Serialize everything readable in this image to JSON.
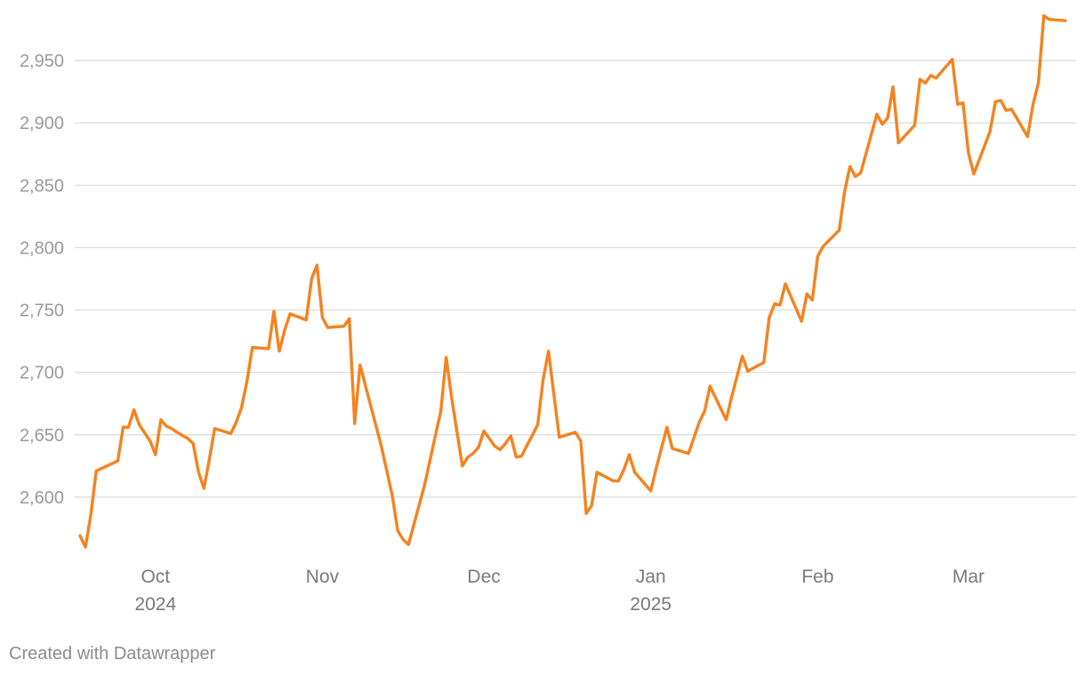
{
  "credit": "Created with Datawrapper",
  "colors": {
    "line": "#f5821f",
    "grid": "#d9d9d9",
    "y_tick_text": "#9a9a9a",
    "x_tick_text": "#7a7a7a",
    "credit_text": "#8c8c8c"
  },
  "chart_data": {
    "type": "line",
    "title": "",
    "xlabel": "",
    "ylabel": "",
    "grid": true,
    "ylim": [
      2555,
      2990
    ],
    "xlim": [
      "2024-09-16",
      "2025-03-21"
    ],
    "y_ticks": [
      {
        "value": 2600,
        "label": "2,600"
      },
      {
        "value": 2650,
        "label": "2,650"
      },
      {
        "value": 2700,
        "label": "2,700"
      },
      {
        "value": 2750,
        "label": "2,750"
      },
      {
        "value": 2800,
        "label": "2,800"
      },
      {
        "value": 2850,
        "label": "2,850"
      },
      {
        "value": 2900,
        "label": "2,900"
      },
      {
        "value": 2950,
        "label": "2,950"
      }
    ],
    "x_ticks": [
      {
        "date": "2024-10-01",
        "label": "Oct",
        "sublabel": "2024"
      },
      {
        "date": "2024-11-01",
        "label": "Nov",
        "sublabel": ""
      },
      {
        "date": "2024-12-01",
        "label": "Dec",
        "sublabel": ""
      },
      {
        "date": "2025-01-01",
        "label": "Jan",
        "sublabel": "2025"
      },
      {
        "date": "2025-02-01",
        "label": "Feb",
        "sublabel": ""
      },
      {
        "date": "2025-03-01",
        "label": "Mar",
        "sublabel": ""
      }
    ],
    "series": [
      {
        "points": [
          [
            "2024-09-17",
            2569
          ],
          [
            "2024-09-18",
            2560
          ],
          [
            "2024-09-19",
            2586
          ],
          [
            "2024-09-20",
            2621
          ],
          [
            "2024-09-23",
            2627
          ],
          [
            "2024-09-24",
            2629
          ],
          [
            "2024-09-25",
            2656
          ],
          [
            "2024-09-26",
            2656
          ],
          [
            "2024-09-27",
            2670
          ],
          [
            "2024-09-28",
            2658
          ],
          [
            "2024-09-30",
            2645
          ],
          [
            "2024-10-01",
            2634
          ],
          [
            "2024-10-02",
            2662
          ],
          [
            "2024-10-03",
            2657
          ],
          [
            "2024-10-04",
            2655
          ],
          [
            "2024-10-05",
            2652
          ],
          [
            "2024-10-07",
            2647
          ],
          [
            "2024-10-08",
            2643
          ],
          [
            "2024-10-09",
            2620
          ],
          [
            "2024-10-10",
            2607
          ],
          [
            "2024-10-11",
            2630
          ],
          [
            "2024-10-12",
            2655
          ],
          [
            "2024-10-15",
            2651
          ],
          [
            "2024-10-16",
            2660
          ],
          [
            "2024-10-17",
            2672
          ],
          [
            "2024-10-18",
            2693
          ],
          [
            "2024-10-19",
            2720
          ],
          [
            "2024-10-22",
            2719
          ],
          [
            "2024-10-23",
            2749
          ],
          [
            "2024-10-24",
            2717
          ],
          [
            "2024-10-25",
            2734
          ],
          [
            "2024-10-26",
            2747
          ],
          [
            "2024-10-29",
            2742
          ],
          [
            "2024-10-30",
            2775
          ],
          [
            "2024-10-31",
            2786
          ],
          [
            "2024-11-01",
            2744
          ],
          [
            "2024-11-02",
            2736
          ],
          [
            "2024-11-05",
            2737
          ],
          [
            "2024-11-06",
            2743
          ],
          [
            "2024-11-07",
            2659
          ],
          [
            "2024-11-08",
            2706
          ],
          [
            "2024-11-12",
            2640
          ],
          [
            "2024-11-14",
            2601
          ],
          [
            "2024-11-15",
            2573
          ],
          [
            "2024-11-16",
            2566
          ],
          [
            "2024-11-17",
            2562
          ],
          [
            "2024-11-20",
            2610
          ],
          [
            "2024-11-23",
            2669
          ],
          [
            "2024-11-24",
            2712
          ],
          [
            "2024-11-25",
            2680
          ],
          [
            "2024-11-27",
            2625
          ],
          [
            "2024-11-28",
            2632
          ],
          [
            "2024-11-29",
            2635
          ],
          [
            "2024-11-30",
            2640
          ],
          [
            "2024-12-01",
            2653
          ],
          [
            "2024-12-03",
            2641
          ],
          [
            "2024-12-04",
            2638
          ],
          [
            "2024-12-05",
            2643
          ],
          [
            "2024-12-06",
            2649
          ],
          [
            "2024-12-07",
            2632
          ],
          [
            "2024-12-08",
            2633
          ],
          [
            "2024-12-11",
            2658
          ],
          [
            "2024-12-12",
            2694
          ],
          [
            "2024-12-13",
            2717
          ],
          [
            "2024-12-15",
            2648
          ],
          [
            "2024-12-18",
            2652
          ],
          [
            "2024-12-19",
            2645
          ],
          [
            "2024-12-20",
            2587
          ],
          [
            "2024-12-21",
            2593
          ],
          [
            "2024-12-22",
            2620
          ],
          [
            "2024-12-25",
            2613
          ],
          [
            "2024-12-26",
            2613
          ],
          [
            "2024-12-27",
            2622
          ],
          [
            "2024-12-28",
            2634
          ],
          [
            "2024-12-29",
            2620
          ],
          [
            "2025-01-01",
            2605
          ],
          [
            "2025-01-02",
            2623
          ],
          [
            "2025-01-04",
            2656
          ],
          [
            "2025-01-05",
            2639
          ],
          [
            "2025-01-08",
            2635
          ],
          [
            "2025-01-10",
            2660
          ],
          [
            "2025-01-11",
            2669
          ],
          [
            "2025-01-12",
            2689
          ],
          [
            "2025-01-15",
            2662
          ],
          [
            "2025-01-16",
            2680
          ],
          [
            "2025-01-18",
            2713
          ],
          [
            "2025-01-19",
            2701
          ],
          [
            "2025-01-22",
            2708
          ],
          [
            "2025-01-23",
            2744
          ],
          [
            "2025-01-24",
            2755
          ],
          [
            "2025-01-25",
            2754
          ],
          [
            "2025-01-26",
            2771
          ],
          [
            "2025-01-29",
            2741
          ],
          [
            "2025-01-30",
            2763
          ],
          [
            "2025-01-31",
            2758
          ],
          [
            "2025-02-01",
            2793
          ],
          [
            "2025-02-02",
            2801
          ],
          [
            "2025-02-05",
            2814
          ],
          [
            "2025-02-06",
            2845
          ],
          [
            "2025-02-07",
            2865
          ],
          [
            "2025-02-08",
            2857
          ],
          [
            "2025-02-09",
            2860
          ],
          [
            "2025-02-12",
            2907
          ],
          [
            "2025-02-13",
            2899
          ],
          [
            "2025-02-14",
            2904
          ],
          [
            "2025-02-15",
            2929
          ],
          [
            "2025-02-16",
            2884
          ],
          [
            "2025-02-19",
            2898
          ],
          [
            "2025-02-20",
            2935
          ],
          [
            "2025-02-21",
            2932
          ],
          [
            "2025-02-22",
            2938
          ],
          [
            "2025-02-23",
            2936
          ],
          [
            "2025-02-26",
            2951
          ],
          [
            "2025-02-27",
            2915
          ],
          [
            "2025-02-28",
            2916
          ],
          [
            "2025-03-01",
            2876
          ],
          [
            "2025-03-02",
            2859
          ],
          [
            "2025-03-05",
            2893
          ],
          [
            "2025-03-06",
            2917
          ],
          [
            "2025-03-07",
            2918
          ],
          [
            "2025-03-08",
            2910
          ],
          [
            "2025-03-09",
            2911
          ],
          [
            "2025-03-12",
            2889
          ],
          [
            "2025-03-13",
            2915
          ],
          [
            "2025-03-14",
            2932
          ],
          [
            "2025-03-15",
            2986
          ],
          [
            "2025-03-16",
            2983
          ],
          [
            "2025-03-19",
            2982
          ]
        ]
      }
    ]
  }
}
